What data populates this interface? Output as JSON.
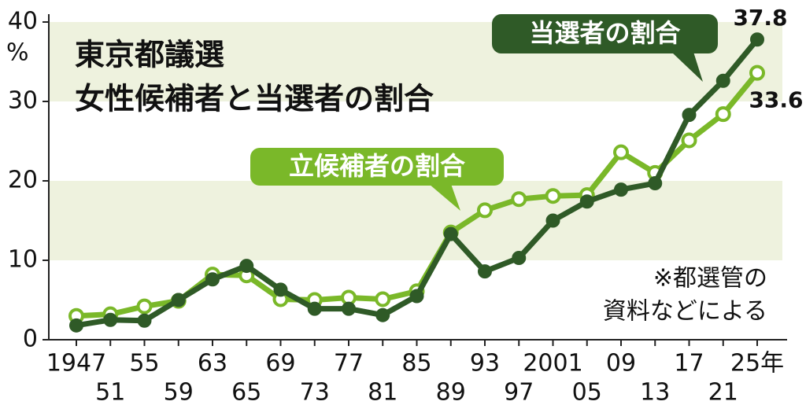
{
  "chart_data": {
    "type": "line",
    "title": [
      "東京都議選",
      "女性候補者と当選者の割合"
    ],
    "unit": "%",
    "categories": [
      "1947",
      "51",
      "55",
      "59",
      "63",
      "65",
      "69",
      "73",
      "77",
      "81",
      "85",
      "89",
      "93",
      "97",
      "2001",
      "05",
      "09",
      "13",
      "17",
      "21",
      "25年"
    ],
    "series": [
      {
        "name": "立候補者の割合",
        "color": "#7ab829",
        "values": [
          3.0,
          3.2,
          4.2,
          4.9,
          8.2,
          8.1,
          5.1,
          5.0,
          5.3,
          5.1,
          6.1,
          13.5,
          16.3,
          17.7,
          18.1,
          18.2,
          23.6,
          21.0,
          25.1,
          28.4,
          33.6
        ]
      },
      {
        "name": "当選者の割合",
        "color": "#2f5a27",
        "values": [
          1.8,
          2.5,
          2.4,
          5.0,
          7.6,
          9.3,
          6.3,
          3.9,
          3.9,
          3.1,
          5.5,
          13.3,
          8.6,
          10.3,
          15.0,
          17.4,
          18.9,
          19.7,
          28.3,
          32.6,
          37.8
        ]
      }
    ],
    "ylim": [
      0,
      40
    ],
    "yticks": [
      0,
      10,
      20,
      30,
      40
    ],
    "band_color": "#eef2de",
    "note": [
      "※都選管の",
      "資料などによる"
    ]
  }
}
